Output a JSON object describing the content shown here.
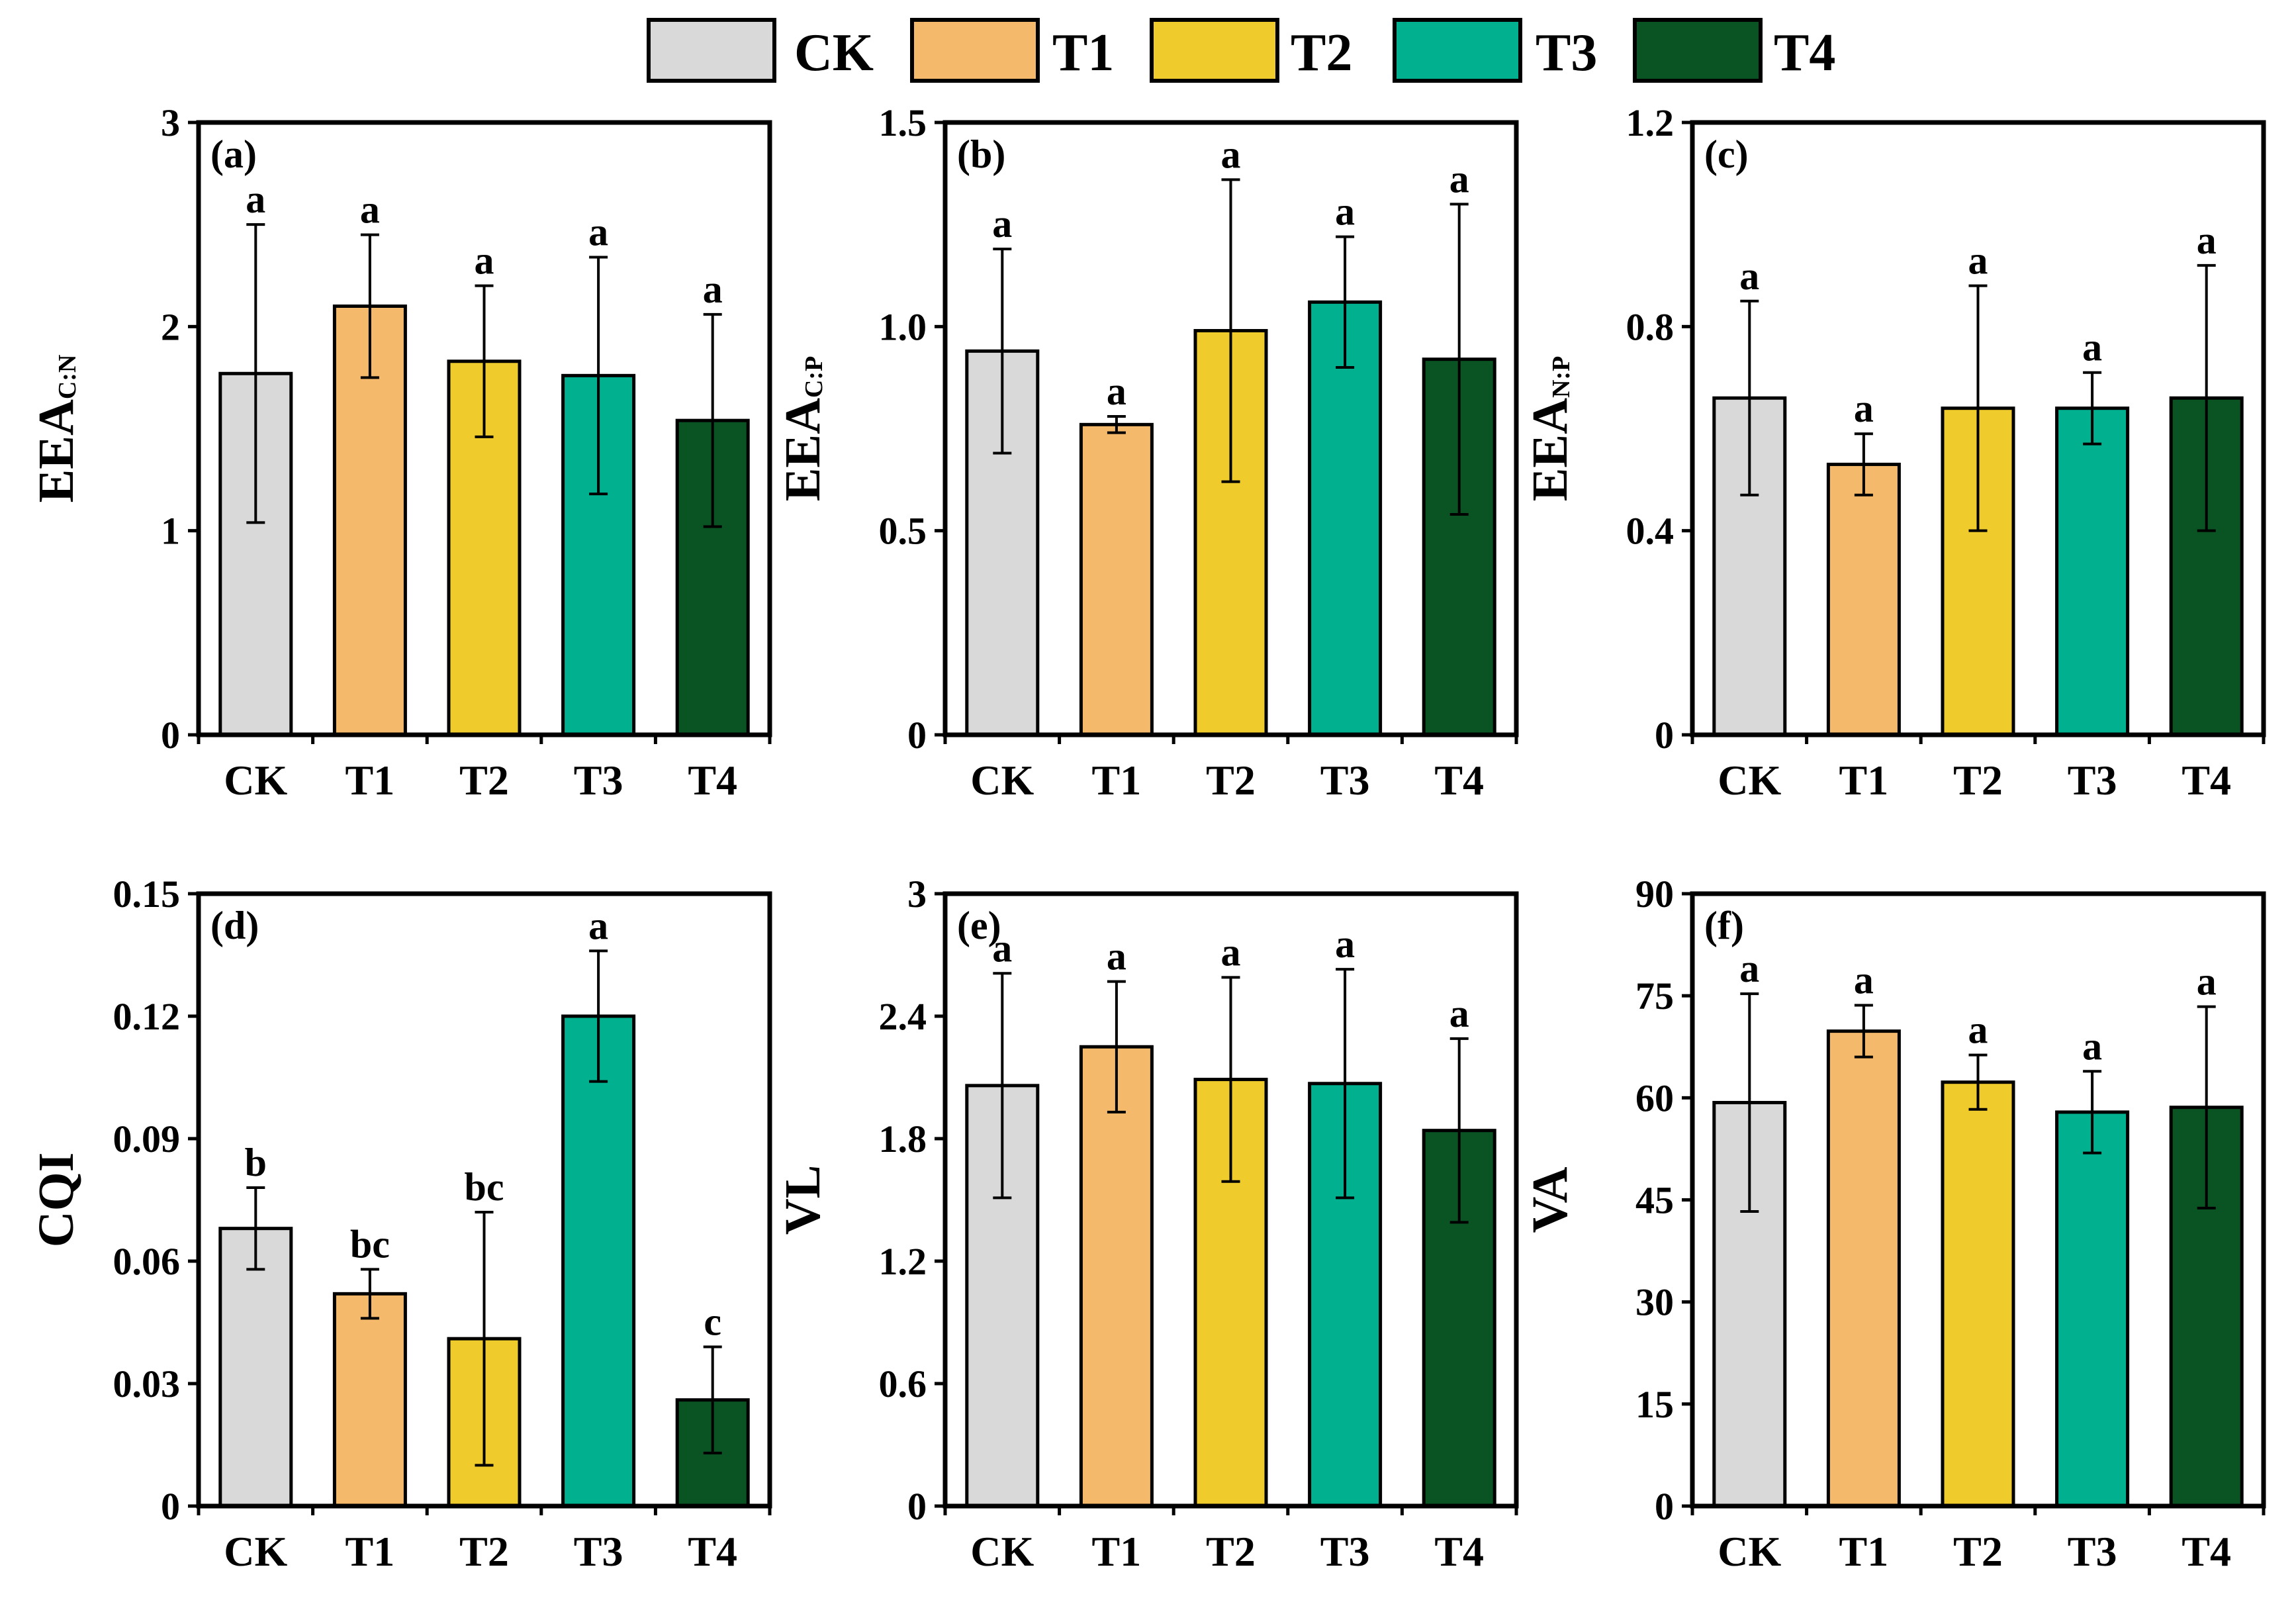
{
  "legend": {
    "items": [
      {
        "label": "CK",
        "color": "#d9d9d9"
      },
      {
        "label": "T1",
        "color": "#f4b96a"
      },
      {
        "label": "T2",
        "color": "#f0cb2c"
      },
      {
        "label": "T3",
        "color": "#00b08e"
      },
      {
        "label": "T4",
        "color": "#0a5423"
      }
    ]
  },
  "chart_data": [
    {
      "type": "bar",
      "panel": "(a)",
      "ylabel": "EEA",
      "ylabel_sub": "C:N",
      "categories": [
        "CK",
        "T1",
        "T2",
        "T3",
        "T4"
      ],
      "values": [
        1.77,
        2.1,
        1.83,
        1.76,
        1.54
      ],
      "errors": [
        0.73,
        0.35,
        0.37,
        0.58,
        0.52
      ],
      "letters": [
        "a",
        "a",
        "a",
        "a",
        "a"
      ],
      "ylim": [
        0,
        3
      ],
      "yticks": [
        0,
        1,
        2,
        3
      ],
      "ytick_labels": [
        "0",
        "1",
        "2",
        "3"
      ]
    },
    {
      "type": "bar",
      "panel": "(b)",
      "ylabel": "EEA",
      "ylabel_sub": "C:P",
      "categories": [
        "CK",
        "T1",
        "T2",
        "T3",
        "T4"
      ],
      "values": [
        0.94,
        0.76,
        0.99,
        1.06,
        0.92
      ],
      "errors": [
        0.25,
        0.02,
        0.37,
        0.16,
        0.38
      ],
      "letters": [
        "a",
        "a",
        "a",
        "a",
        "a"
      ],
      "ylim": [
        0,
        1.5
      ],
      "yticks": [
        0,
        0.5,
        1.0,
        1.5
      ],
      "ytick_labels": [
        "0",
        "0.5",
        "1.0",
        "1.5"
      ]
    },
    {
      "type": "bar",
      "panel": "(c)",
      "ylabel": "EEA",
      "ylabel_sub": "N:P",
      "categories": [
        "CK",
        "T1",
        "T2",
        "T3",
        "T4"
      ],
      "values": [
        0.66,
        0.53,
        0.64,
        0.64,
        0.66
      ],
      "errors": [
        0.19,
        0.06,
        0.24,
        0.07,
        0.26
      ],
      "letters": [
        "a",
        "a",
        "a",
        "a",
        "a"
      ],
      "ylim": [
        0,
        1.2
      ],
      "yticks": [
        0,
        0.4,
        0.8,
        1.2
      ],
      "ytick_labels": [
        "0",
        "0.4",
        "0.8",
        "1.2"
      ]
    },
    {
      "type": "bar",
      "panel": "(d)",
      "ylabel": "CQI",
      "ylabel_sub": "",
      "categories": [
        "CK",
        "T1",
        "T2",
        "T3",
        "T4"
      ],
      "values": [
        0.068,
        0.052,
        0.041,
        0.12,
        0.026
      ],
      "errors": [
        0.01,
        0.006,
        0.031,
        0.016,
        0.013
      ],
      "letters": [
        "b",
        "bc",
        "bc",
        "a",
        "c"
      ],
      "ylim": [
        0,
        0.15
      ],
      "yticks": [
        0,
        0.03,
        0.06,
        0.09,
        0.12,
        0.15
      ],
      "ytick_labels": [
        "0",
        "0.03",
        "0.06",
        "0.09",
        "0.12",
        "0.15"
      ]
    },
    {
      "type": "bar",
      "panel": "(e)",
      "ylabel": "VL",
      "ylabel_sub": "",
      "categories": [
        "CK",
        "T1",
        "T2",
        "T3",
        "T4"
      ],
      "values": [
        2.06,
        2.25,
        2.09,
        2.07,
        1.84
      ],
      "errors": [
        0.55,
        0.32,
        0.5,
        0.56,
        0.45
      ],
      "letters": [
        "a",
        "a",
        "a",
        "a",
        "a"
      ],
      "ylim": [
        0,
        3
      ],
      "yticks": [
        0,
        0.6,
        1.2,
        1.8,
        2.4,
        3
      ],
      "ytick_labels": [
        "0",
        "0.6",
        "1.2",
        "1.8",
        "2.4",
        "3"
      ]
    },
    {
      "type": "bar",
      "panel": "(f)",
      "ylabel": "VA",
      "ylabel_sub": "",
      "categories": [
        "CK",
        "T1",
        "T2",
        "T3",
        "T4"
      ],
      "values": [
        59.3,
        69.8,
        62.3,
        57.9,
        58.6
      ],
      "errors": [
        16.0,
        3.8,
        4.0,
        6.0,
        14.8
      ],
      "letters": [
        "a",
        "a",
        "a",
        "a",
        "a"
      ],
      "ylim": [
        0,
        90
      ],
      "yticks": [
        0,
        15,
        30,
        45,
        60,
        75,
        90
      ],
      "ytick_labels": [
        "0",
        "15",
        "30",
        "45",
        "60",
        "75",
        "90"
      ]
    }
  ]
}
